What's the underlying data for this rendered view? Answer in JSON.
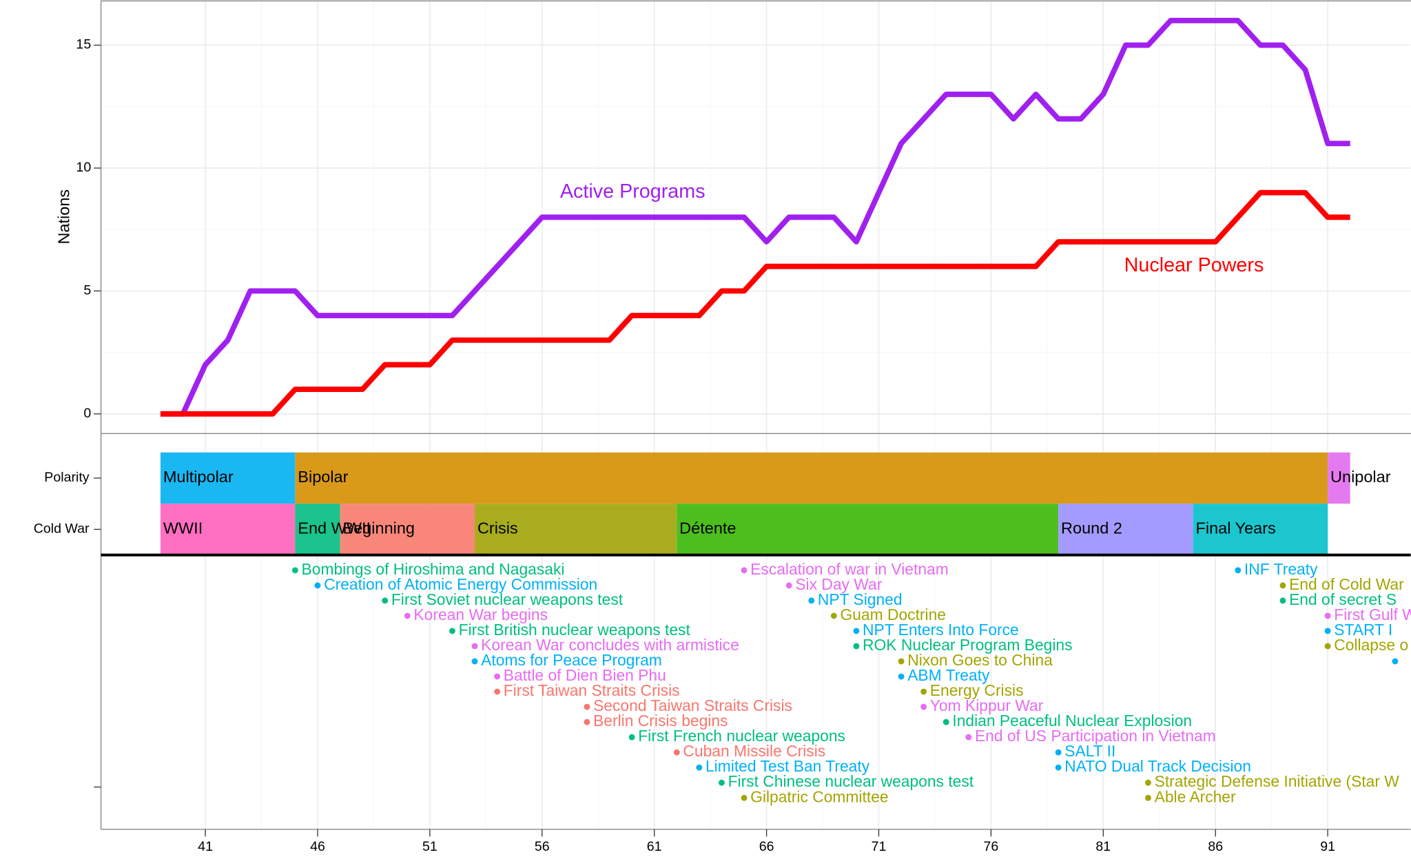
{
  "chart_data": [
    {
      "type": "line",
      "ylabel": "Nations",
      "x": [
        39,
        40,
        41,
        42,
        43,
        44,
        45,
        46,
        47,
        48,
        49,
        50,
        51,
        52,
        53,
        54,
        55,
        56,
        57,
        58,
        59,
        60,
        61,
        62,
        63,
        64,
        65,
        66,
        67,
        68,
        69,
        70,
        71,
        72,
        73,
        74,
        75,
        76,
        77,
        78,
        79,
        80,
        81,
        82,
        83,
        84,
        85,
        86,
        87,
        88,
        89,
        90,
        91,
        92
      ],
      "series": [
        {
          "name": "Active Programs",
          "color": "#A020F0",
          "values": [
            0,
            0,
            2,
            3,
            5,
            5,
            5,
            4,
            4,
            4,
            4,
            4,
            4,
            4,
            5,
            6,
            7,
            8,
            8,
            8,
            8,
            8,
            8,
            8,
            8,
            8,
            8,
            7,
            8,
            8,
            8,
            7,
            9,
            11,
            12,
            13,
            13,
            13,
            12,
            13,
            12,
            12,
            13,
            15,
            15,
            16,
            16,
            16,
            16,
            15,
            15,
            14,
            11,
            11
          ]
        },
        {
          "name": "Nuclear Powers",
          "color": "#FF0000",
          "values": [
            0,
            0,
            0,
            0,
            0,
            0,
            1,
            1,
            1,
            1,
            2,
            2,
            2,
            3,
            3,
            3,
            3,
            3,
            3,
            3,
            3,
            4,
            4,
            4,
            4,
            5,
            5,
            6,
            6,
            6,
            6,
            6,
            6,
            6,
            6,
            6,
            6,
            6,
            6,
            6,
            7,
            7,
            7,
            7,
            7,
            7,
            7,
            7,
            8,
            9,
            9,
            9,
            8,
            8
          ]
        }
      ],
      "xlim": [
        36.35,
        94.7
      ],
      "ylim": [
        -0.8,
        16.8
      ],
      "yticks": [
        0,
        5,
        10,
        15
      ],
      "grid": true
    },
    {
      "type": "gantt",
      "rows": [
        {
          "name": "Polarity",
          "segments": [
            {
              "label": "Multipolar",
              "start": 39,
              "end": 45,
              "color": "#1AB8F2"
            },
            {
              "label": "Bipolar",
              "start": 45,
              "end": 91,
              "color": "#D99A1A"
            },
            {
              "label": "Unipolar",
              "start": 91,
              "end": 92,
              "color": "#E57AF0"
            }
          ]
        },
        {
          "name": "Cold War",
          "segments": [
            {
              "label": "WWII",
              "start": 39,
              "end": 45,
              "color": "#FF6FC2"
            },
            {
              "label": "End WWII",
              "start": 45,
              "end": 47,
              "color": "#1AC48C"
            },
            {
              "label": "Beginning",
              "start": 47,
              "end": 53,
              "color": "#F8877A"
            },
            {
              "label": "Crisis",
              "start": 53,
              "end": 62,
              "color": "#A9AD1D"
            },
            {
              "label": "Détente",
              "start": 62,
              "end": 79,
              "color": "#4CBF1E"
            },
            {
              "label": "Round 2",
              "start": 79,
              "end": 85,
              "color": "#A39BFF"
            },
            {
              "label": "Final Years",
              "start": 85,
              "end": 91,
              "color": "#1CC6CF"
            }
          ]
        }
      ],
      "xlim": [
        36.35,
        94.7
      ]
    },
    {
      "type": "timeline",
      "events": [
        {
          "year": 45,
          "label": "Bombings of Hiroshima and Nagasaki",
          "color": "#00BF7D"
        },
        {
          "year": 46,
          "label": "Creation of Atomic Energy Commission",
          "color": "#00B0F6"
        },
        {
          "year": 49,
          "label": "First Soviet nuclear weapons test",
          "color": "#00BF7D"
        },
        {
          "year": 50,
          "label": "Korean War begins",
          "color": "#E76BF3"
        },
        {
          "year": 52,
          "label": "First British nuclear weapons test",
          "color": "#00BF7D"
        },
        {
          "year": 53,
          "label": "Korean War concludes with armistice",
          "color": "#E76BF3"
        },
        {
          "year": 53,
          "label": "Atoms for Peace Program",
          "color": "#00B0F6"
        },
        {
          "year": 54,
          "label": "Battle of Dien Bien Phu",
          "color": "#E76BF3"
        },
        {
          "year": 54,
          "label": "First Taiwan Straits Crisis",
          "color": "#F8766D"
        },
        {
          "year": 58,
          "label": "Second Taiwan Straits Crisis",
          "color": "#F8766D"
        },
        {
          "year": 58,
          "label": "Berlin Crisis begins",
          "color": "#F8766D"
        },
        {
          "year": 60,
          "label": "First French nuclear weapons",
          "color": "#00BF7D"
        },
        {
          "year": 62,
          "label": "Cuban Missile Crisis",
          "color": "#F8766D"
        },
        {
          "year": 63,
          "label": "Limited Test Ban Treaty",
          "color": "#00B0F6"
        },
        {
          "year": 64,
          "label": "First Chinese nuclear weapons test",
          "color": "#00BF7D"
        },
        {
          "year": 65,
          "label": "Gilpatric Committee",
          "color": "#A3A500"
        },
        {
          "year": 65,
          "label": "Escalation of war in Vietnam",
          "color": "#E76BF3"
        },
        {
          "year": 67,
          "label": "Six Day War",
          "color": "#E76BF3"
        },
        {
          "year": 68,
          "label": "NPT Signed",
          "color": "#00B0F6"
        },
        {
          "year": 69,
          "label": "Guam Doctrine",
          "color": "#A3A500"
        },
        {
          "year": 70,
          "label": "NPT Enters Into Force",
          "color": "#00B0F6"
        },
        {
          "year": 70,
          "label": "ROK Nuclear Program Begins",
          "color": "#00BF7D"
        },
        {
          "year": 72,
          "label": "Nixon Goes to China",
          "color": "#A3A500"
        },
        {
          "year": 72,
          "label": "ABM Treaty",
          "color": "#00B0F6"
        },
        {
          "year": 73,
          "label": "Energy Crisis",
          "color": "#A3A500"
        },
        {
          "year": 73,
          "label": "Yom Kippur War",
          "color": "#E76BF3"
        },
        {
          "year": 74,
          "label": "Indian Peaceful Nuclear Explosion",
          "color": "#00BF7D"
        },
        {
          "year": 75,
          "label": "End of US Participation in Vietnam",
          "color": "#E76BF3"
        },
        {
          "year": 79,
          "label": "SALT II",
          "color": "#00B0F6"
        },
        {
          "year": 79,
          "label": "NATO Dual Track Decision",
          "color": "#00B0F6"
        },
        {
          "year": 83,
          "label": "Strategic Defense Initiative (Star W",
          "color": "#A3A500"
        },
        {
          "year": 83,
          "label": "Able Archer",
          "color": "#A3A500"
        },
        {
          "year": 87,
          "label": "INF Treaty",
          "color": "#00B0F6"
        },
        {
          "year": 89,
          "label": "End of Cold War",
          "color": "#A3A500"
        },
        {
          "year": 89,
          "label": "End of secret S",
          "color": "#00BF7D"
        },
        {
          "year": 91,
          "label": "First Gulf W",
          "color": "#E76BF3"
        },
        {
          "year": 91,
          "label": "START I",
          "color": "#00B0F6"
        },
        {
          "year": 91,
          "label": "Collapse o",
          "color": "#A3A500"
        },
        {
          "year": 94,
          "label": null,
          "color": "#00B0F6"
        }
      ],
      "xlim": [
        36.35,
        94.7
      ],
      "xticks": [
        41,
        46,
        51,
        56,
        61,
        66,
        71,
        76,
        81,
        86,
        91
      ]
    }
  ]
}
